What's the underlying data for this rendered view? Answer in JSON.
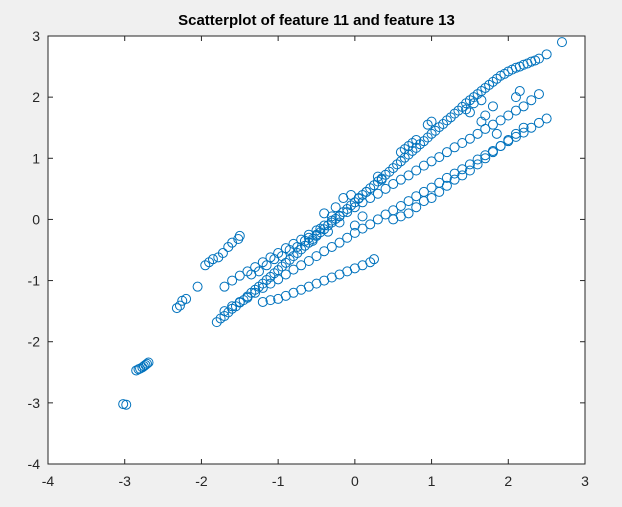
{
  "figure": {
    "background": "#f0f0f0",
    "axes_background": "#ffffff",
    "axis_color": "#262626",
    "marker_color": "#0072bd"
  },
  "chart_data": {
    "type": "scatter",
    "title": "Scatterplot of feature 11 and feature 13",
    "xlabel": "",
    "ylabel": "",
    "xlim": [
      -4,
      3
    ],
    "ylim": [
      -4,
      3
    ],
    "xticks": [
      -4,
      -3,
      -2,
      -1,
      0,
      1,
      2,
      3
    ],
    "yticks": [
      -4,
      -3,
      -2,
      -1,
      0,
      1,
      2,
      3
    ],
    "grid": false,
    "marker": "open-circle",
    "series": [
      {
        "color": "#0072bd",
        "points": [
          [
            -3.02,
            -3.02
          ],
          [
            -2.98,
            -3.03
          ],
          [
            -2.85,
            -2.47
          ],
          [
            -2.82,
            -2.45
          ],
          [
            -2.8,
            -2.44
          ],
          [
            -2.77,
            -2.42
          ],
          [
            -2.75,
            -2.4
          ],
          [
            -2.73,
            -2.38
          ],
          [
            -2.71,
            -2.36
          ],
          [
            -2.69,
            -2.34
          ],
          [
            -2.32,
            -1.45
          ],
          [
            -2.28,
            -1.41
          ],
          [
            -2.25,
            -1.33
          ],
          [
            -2.2,
            -1.3
          ],
          [
            -2.05,
            -1.1
          ],
          [
            -1.95,
            -0.75
          ],
          [
            -1.9,
            -0.7
          ],
          [
            -1.85,
            -0.65
          ],
          [
            -1.78,
            -0.62
          ],
          [
            -1.72,
            -0.55
          ],
          [
            -1.65,
            -0.45
          ],
          [
            -1.6,
            -0.38
          ],
          [
            -1.52,
            -0.32
          ],
          [
            -1.5,
            -0.27
          ],
          [
            -1.8,
            -1.68
          ],
          [
            -1.75,
            -1.62
          ],
          [
            -1.7,
            -1.58
          ],
          [
            -1.65,
            -1.52
          ],
          [
            -1.6,
            -1.46
          ],
          [
            -1.55,
            -1.42
          ],
          [
            -1.5,
            -1.36
          ],
          [
            -1.45,
            -1.32
          ],
          [
            -1.4,
            -1.26
          ],
          [
            -1.35,
            -1.2
          ],
          [
            -1.3,
            -1.15
          ],
          [
            -1.25,
            -1.1
          ],
          [
            -1.2,
            -1.05
          ],
          [
            -1.15,
            -0.99
          ],
          [
            -1.1,
            -0.94
          ],
          [
            -1.05,
            -0.88
          ],
          [
            -1.0,
            -0.83
          ],
          [
            -0.95,
            -0.77
          ],
          [
            -0.9,
            -0.71
          ],
          [
            -0.85,
            -0.66
          ],
          [
            -0.8,
            -0.6
          ],
          [
            -0.75,
            -0.55
          ],
          [
            -0.7,
            -0.49
          ],
          [
            -0.65,
            -0.43
          ],
          [
            -0.6,
            -0.38
          ],
          [
            -0.55,
            -0.32
          ],
          [
            -0.5,
            -0.27
          ],
          [
            -0.45,
            -0.21
          ],
          [
            -0.4,
            -0.16
          ],
          [
            -0.35,
            -0.1
          ],
          [
            -0.3,
            -0.05
          ],
          [
            -0.25,
            0.01
          ],
          [
            -0.2,
            0.06
          ],
          [
            -0.15,
            0.12
          ],
          [
            -0.1,
            0.17
          ],
          [
            -0.05,
            0.23
          ],
          [
            0.0,
            0.28
          ],
          [
            0.05,
            0.34
          ],
          [
            0.1,
            0.4
          ],
          [
            0.15,
            0.45
          ],
          [
            0.2,
            0.51
          ],
          [
            0.25,
            0.56
          ],
          [
            0.3,
            0.62
          ],
          [
            0.35,
            0.67
          ],
          [
            0.4,
            0.73
          ],
          [
            0.45,
            0.78
          ],
          [
            0.5,
            0.84
          ],
          [
            0.55,
            0.9
          ],
          [
            0.6,
            0.95
          ],
          [
            0.65,
            1.01
          ],
          [
            0.7,
            1.06
          ],
          [
            0.75,
            1.12
          ],
          [
            0.8,
            1.17
          ],
          [
            0.85,
            1.23
          ],
          [
            0.9,
            1.28
          ],
          [
            0.95,
            1.34
          ],
          [
            1.0,
            1.4
          ],
          [
            1.05,
            1.45
          ],
          [
            1.1,
            1.51
          ],
          [
            1.15,
            1.56
          ],
          [
            1.2,
            1.62
          ],
          [
            1.25,
            1.67
          ],
          [
            1.3,
            1.73
          ],
          [
            1.35,
            1.78
          ],
          [
            1.4,
            1.84
          ],
          [
            1.45,
            1.9
          ],
          [
            1.5,
            1.95
          ],
          [
            1.55,
            2.0
          ],
          [
            1.6,
            2.05
          ],
          [
            1.65,
            2.1
          ],
          [
            1.7,
            2.15
          ],
          [
            1.75,
            2.2
          ],
          [
            1.8,
            2.25
          ],
          [
            1.85,
            2.3
          ],
          [
            1.9,
            2.35
          ],
          [
            1.95,
            2.38
          ],
          [
            2.0,
            2.42
          ],
          [
            2.05,
            2.45
          ],
          [
            2.1,
            2.48
          ],
          [
            2.15,
            2.5
          ],
          [
            2.2,
            2.53
          ],
          [
            2.25,
            2.55
          ],
          [
            2.3,
            2.58
          ],
          [
            2.35,
            2.6
          ],
          [
            2.4,
            2.63
          ],
          [
            2.5,
            2.7
          ],
          [
            2.7,
            2.9
          ],
          [
            -1.7,
            -1.1
          ],
          [
            -1.6,
            -1.0
          ],
          [
            -1.5,
            -0.92
          ],
          [
            -1.4,
            -0.85
          ],
          [
            -1.3,
            -0.78
          ],
          [
            -1.2,
            -0.7
          ],
          [
            -1.1,
            -0.62
          ],
          [
            -1.0,
            -0.55
          ],
          [
            -0.9,
            -0.47
          ],
          [
            -0.8,
            -0.4
          ],
          [
            -0.7,
            -0.33
          ],
          [
            -0.6,
            -0.25
          ],
          [
            -0.5,
            -0.18
          ],
          [
            -0.4,
            -0.1
          ],
          [
            -0.3,
            -0.02
          ],
          [
            -0.2,
            0.05
          ],
          [
            -0.1,
            0.12
          ],
          [
            0.0,
            0.2
          ],
          [
            0.1,
            0.28
          ],
          [
            0.2,
            0.35
          ],
          [
            0.3,
            0.42
          ],
          [
            0.4,
            0.5
          ],
          [
            0.5,
            0.58
          ],
          [
            0.6,
            0.65
          ],
          [
            0.7,
            0.72
          ],
          [
            0.8,
            0.8
          ],
          [
            0.9,
            0.88
          ],
          [
            1.0,
            0.95
          ],
          [
            1.1,
            1.02
          ],
          [
            1.2,
            1.1
          ],
          [
            1.3,
            1.18
          ],
          [
            1.4,
            1.25
          ],
          [
            1.5,
            1.32
          ],
          [
            1.6,
            1.4
          ],
          [
            1.7,
            1.48
          ],
          [
            1.8,
            1.55
          ],
          [
            1.9,
            1.62
          ],
          [
            2.0,
            1.7
          ],
          [
            2.1,
            1.78
          ],
          [
            2.2,
            1.85
          ],
          [
            2.3,
            1.95
          ],
          [
            2.4,
            2.05
          ],
          [
            -1.7,
            -1.5
          ],
          [
            -1.6,
            -1.42
          ],
          [
            -1.5,
            -1.35
          ],
          [
            -1.4,
            -1.28
          ],
          [
            -1.3,
            -1.2
          ],
          [
            -1.2,
            -1.12
          ],
          [
            -1.1,
            -1.05
          ],
          [
            -1.0,
            -0.98
          ],
          [
            -0.9,
            -0.9
          ],
          [
            -0.8,
            -0.82
          ],
          [
            -0.7,
            -0.75
          ],
          [
            -0.6,
            -0.68
          ],
          [
            -0.5,
            -0.6
          ],
          [
            -0.4,
            -0.52
          ],
          [
            -0.3,
            -0.45
          ],
          [
            -0.2,
            -0.38
          ],
          [
            -0.1,
            -0.3
          ],
          [
            0.0,
            -0.22
          ],
          [
            0.1,
            -0.15
          ],
          [
            0.2,
            -0.08
          ],
          [
            0.3,
            0.0
          ],
          [
            0.4,
            0.08
          ],
          [
            0.5,
            0.15
          ],
          [
            0.6,
            0.22
          ],
          [
            0.7,
            0.3
          ],
          [
            0.8,
            0.38
          ],
          [
            0.9,
            0.45
          ],
          [
            1.0,
            0.52
          ],
          [
            1.1,
            0.6
          ],
          [
            1.2,
            0.68
          ],
          [
            1.3,
            0.75
          ],
          [
            1.4,
            0.82
          ],
          [
            1.5,
            0.9
          ],
          [
            1.6,
            0.98
          ],
          [
            1.7,
            1.05
          ],
          [
            1.8,
            1.12
          ],
          [
            1.9,
            1.2
          ],
          [
            2.0,
            1.28
          ],
          [
            2.1,
            1.35
          ],
          [
            2.2,
            1.42
          ],
          [
            2.3,
            1.5
          ],
          [
            2.4,
            1.58
          ],
          [
            2.5,
            1.65
          ],
          [
            -1.0,
            -1.3
          ],
          [
            -0.9,
            -1.25
          ],
          [
            -0.8,
            -1.2
          ],
          [
            -0.7,
            -1.15
          ],
          [
            -0.6,
            -1.1
          ],
          [
            -0.5,
            -1.05
          ],
          [
            -0.4,
            -1.0
          ],
          [
            -0.3,
            -0.95
          ],
          [
            -0.2,
            -0.9
          ],
          [
            -0.1,
            -0.85
          ],
          [
            0.0,
            -0.8
          ],
          [
            0.1,
            -0.75
          ],
          [
            0.2,
            -0.7
          ],
          [
            0.25,
            -0.65
          ],
          [
            -1.2,
            -1.35
          ],
          [
            -1.1,
            -1.32
          ],
          [
            0.5,
            0.0
          ],
          [
            0.6,
            0.05
          ],
          [
            0.7,
            0.1
          ],
          [
            0.8,
            0.2
          ],
          [
            0.9,
            0.3
          ],
          [
            1.0,
            0.35
          ],
          [
            1.1,
            0.45
          ],
          [
            1.2,
            0.55
          ],
          [
            1.3,
            0.65
          ],
          [
            1.4,
            0.72
          ],
          [
            1.5,
            0.8
          ],
          [
            1.6,
            0.9
          ],
          [
            1.7,
            1.0
          ],
          [
            1.8,
            1.1
          ],
          [
            1.9,
            1.2
          ],
          [
            2.0,
            1.3
          ],
          [
            2.1,
            1.4
          ],
          [
            2.2,
            1.5
          ],
          [
            1.45,
            1.8
          ],
          [
            1.55,
            1.9
          ],
          [
            1.65,
            1.95
          ],
          [
            1.5,
            1.75
          ],
          [
            1.7,
            1.7
          ],
          [
            1.8,
            1.85
          ],
          [
            1.85,
            1.4
          ],
          [
            1.65,
            1.6
          ],
          [
            0.6,
            1.1
          ],
          [
            0.65,
            1.15
          ],
          [
            0.7,
            1.2
          ],
          [
            0.75,
            1.25
          ],
          [
            0.8,
            1.3
          ],
          [
            0.95,
            1.55
          ],
          [
            1.0,
            1.6
          ],
          [
            2.1,
            2.0
          ],
          [
            2.15,
            2.1
          ],
          [
            -0.4,
            0.1
          ],
          [
            -0.3,
            0.05
          ],
          [
            -0.25,
            0.2
          ],
          [
            -0.15,
            0.35
          ],
          [
            -0.05,
            0.4
          ],
          [
            0.05,
            0.35
          ],
          [
            0.15,
            0.45
          ],
          [
            0.3,
            0.7
          ],
          [
            0.35,
            0.65
          ],
          [
            -0.6,
            -0.3
          ],
          [
            -0.55,
            -0.35
          ],
          [
            -0.5,
            -0.25
          ],
          [
            -0.45,
            -0.15
          ],
          [
            -0.35,
            -0.2
          ],
          [
            -0.2,
            -0.05
          ],
          [
            0.0,
            -0.1
          ],
          [
            0.1,
            0.05
          ],
          [
            -1.35,
            -0.9
          ],
          [
            -1.25,
            -0.85
          ],
          [
            -1.15,
            -0.75
          ],
          [
            -1.05,
            -0.65
          ],
          [
            -0.95,
            -0.6
          ],
          [
            -0.85,
            -0.5
          ],
          [
            -0.75,
            -0.45
          ],
          [
            -0.65,
            -0.35
          ]
        ]
      }
    ]
  }
}
